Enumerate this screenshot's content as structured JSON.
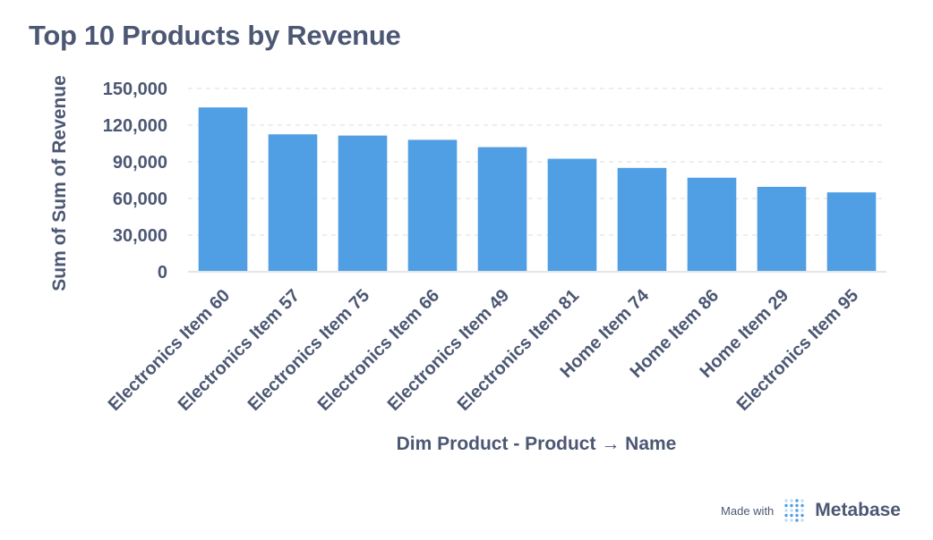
{
  "chart_data": {
    "type": "bar",
    "title": "Top 10 Products by Revenue",
    "xlabel": "Dim Product - Product → Name",
    "ylabel": "Sum of Sum of Revenue",
    "categories": [
      "Electronics Item 60",
      "Electronics Item 57",
      "Electronics Item 75",
      "Electronics Item 66",
      "Electronics Item 49",
      "Electronics Item 81",
      "Home Item 74",
      "Home Item 86",
      "Home Item 29",
      "Electronics Item 95"
    ],
    "values": [
      134500,
      112500,
      111500,
      108000,
      102000,
      92500,
      85000,
      77000,
      69500,
      65000
    ],
    "ylim": [
      0,
      150000
    ],
    "yticks": [
      0,
      30000,
      60000,
      90000,
      120000,
      150000
    ],
    "ytick_labels": [
      "0",
      "30,000",
      "60,000",
      "90,000",
      "120,000",
      "150,000"
    ],
    "grid": true,
    "colors": {
      "bar": "#509ee3",
      "text": "#4c5773",
      "grid": "#e6e8eb"
    }
  },
  "footer": {
    "made_with": "Made with",
    "brand": "Metabase",
    "logo_icon": "metabase-logo-icon"
  }
}
